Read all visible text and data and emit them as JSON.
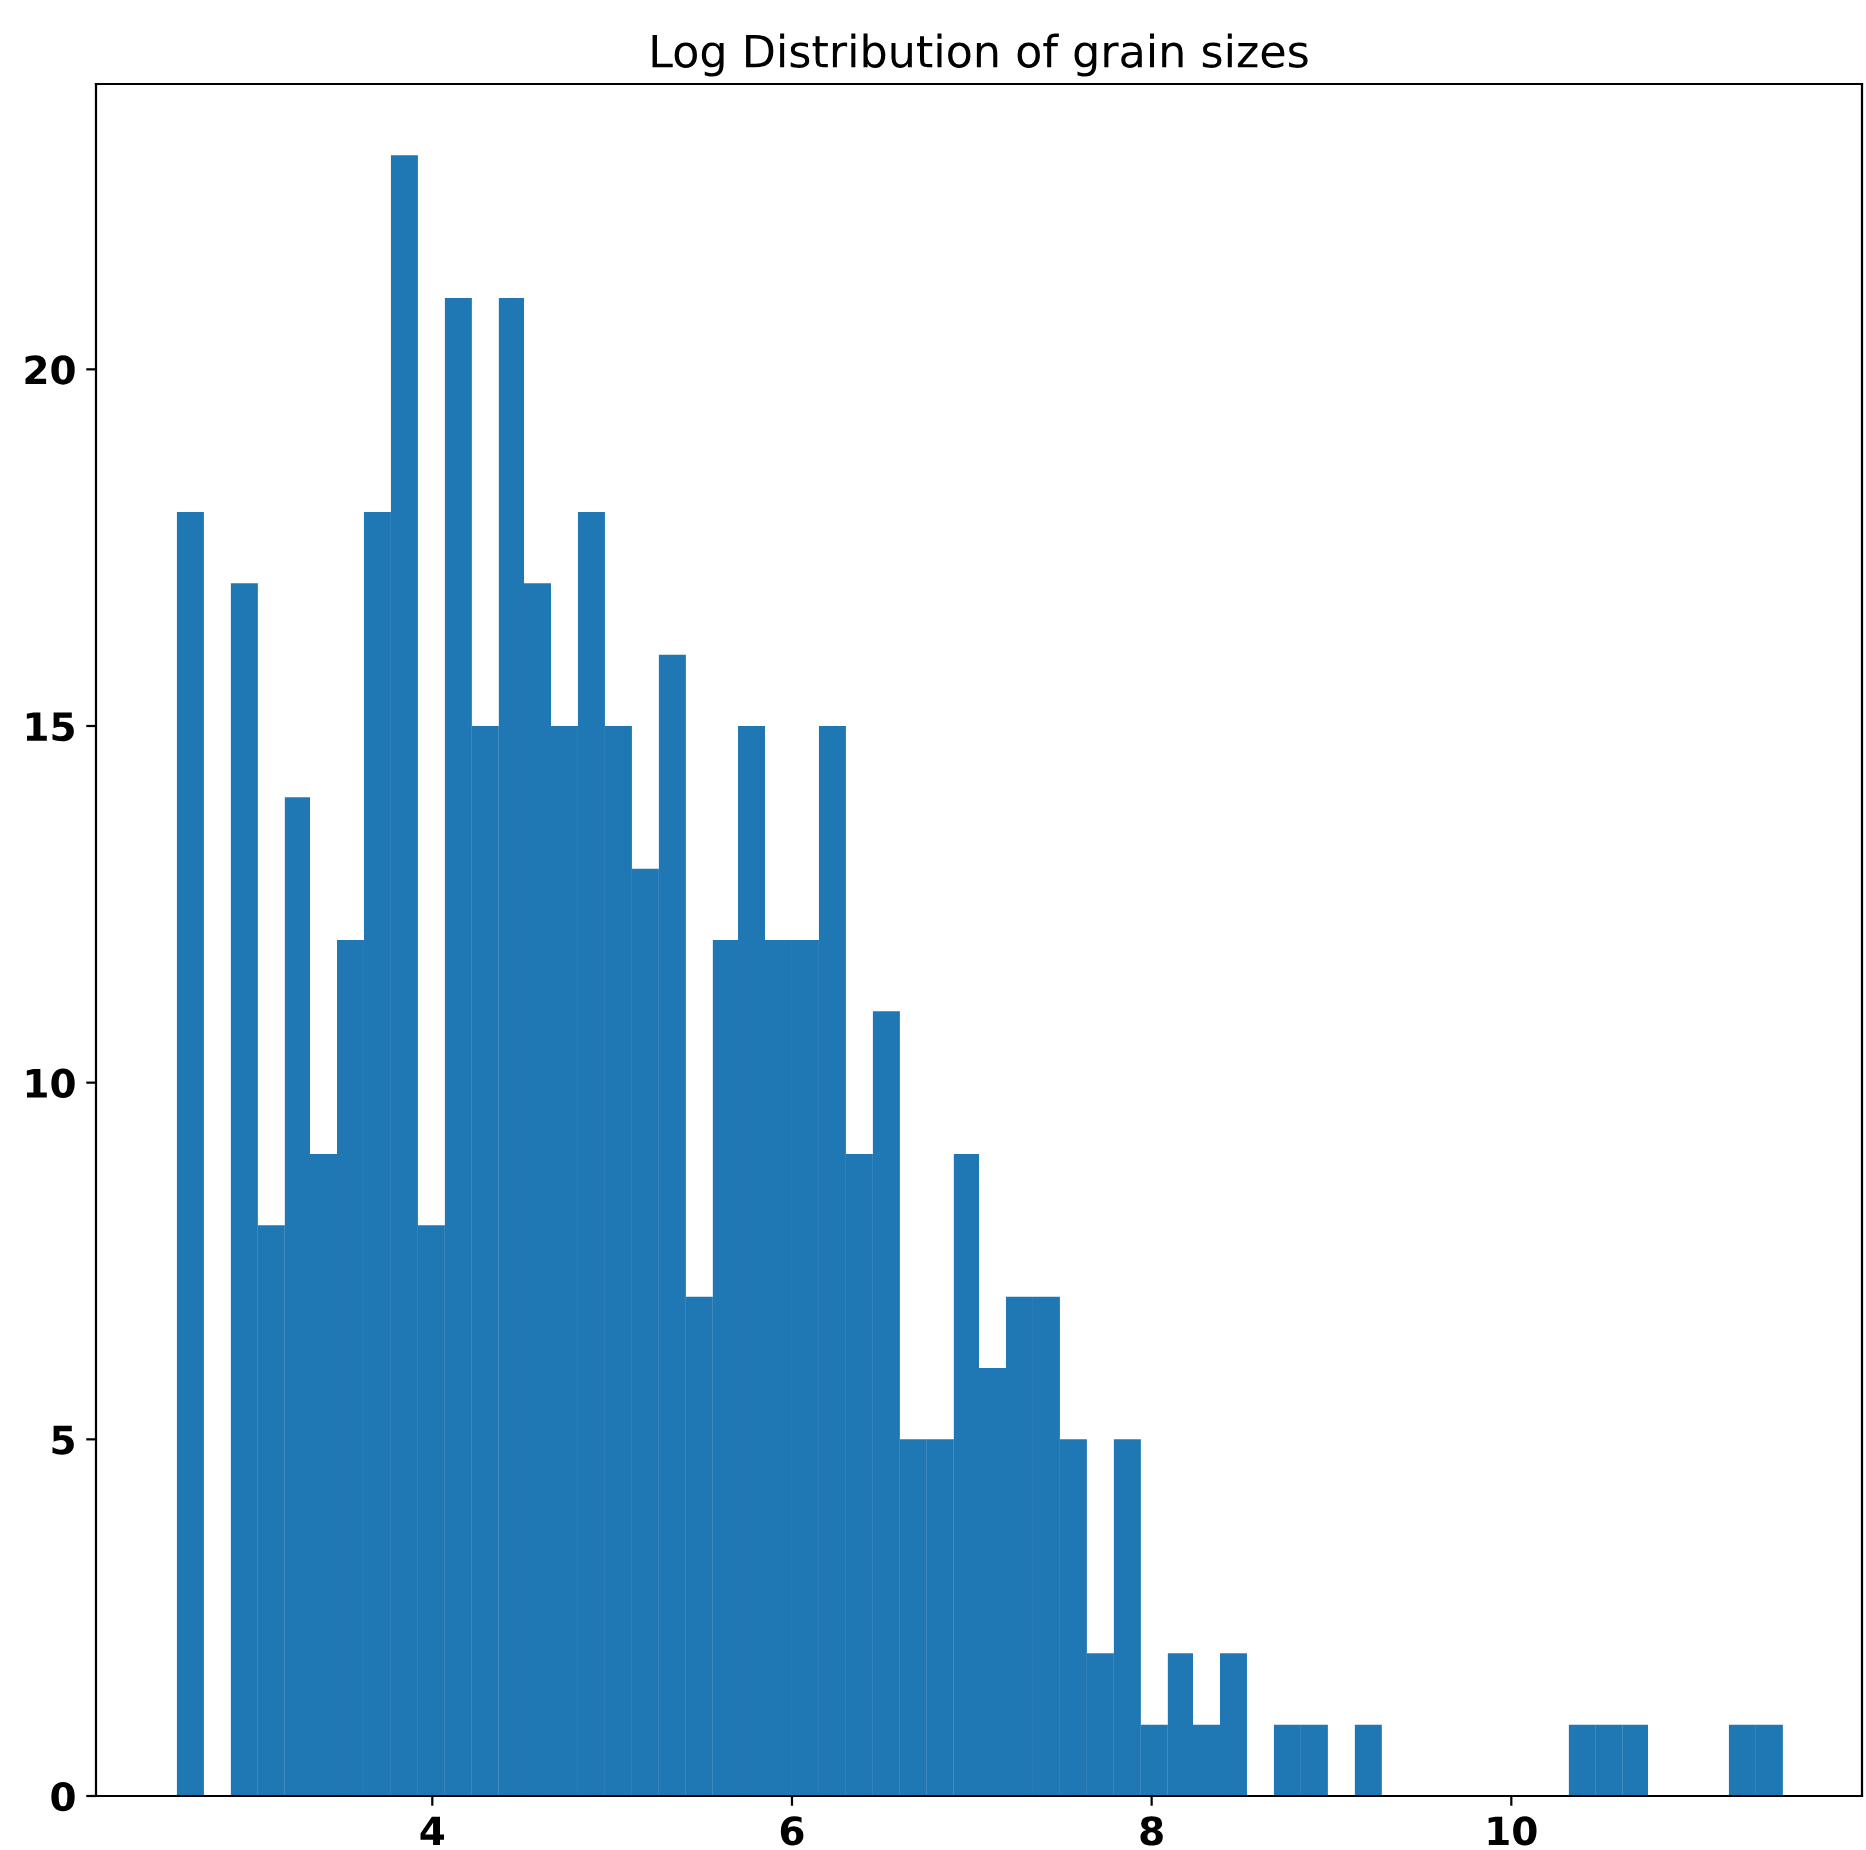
{
  "chart_data": {
    "type": "histogram",
    "title": "Log Distribution of grain sizes",
    "bins": [
      2.58,
      2.73,
      2.88,
      3.03,
      3.18,
      3.32,
      3.47,
      3.62,
      3.77,
      3.92,
      4.07,
      4.22,
      4.37,
      4.51,
      4.66,
      4.81,
      4.96,
      5.11,
      5.26,
      5.41,
      5.56,
      5.7,
      5.85,
      6.0,
      6.15,
      6.3,
      6.45,
      6.6,
      6.75,
      6.9,
      7.04,
      7.19,
      7.34,
      7.49,
      7.64,
      7.79,
      7.94,
      8.09,
      8.23,
      8.38,
      8.53,
      8.68,
      8.83,
      8.98,
      9.13,
      9.28,
      10.32,
      10.47,
      10.62,
      10.76,
      11.21,
      11.36,
      11.51
    ],
    "values": [
      18,
      0,
      17,
      8,
      14,
      9,
      12,
      18,
      23,
      8,
      21,
      15,
      21,
      17,
      15,
      18,
      15,
      13,
      16,
      7,
      12,
      15,
      12,
      12,
      15,
      9,
      11,
      5,
      5,
      9,
      6,
      7,
      7,
      5,
      2,
      5,
      1,
      2,
      1,
      2,
      0,
      1,
      1,
      0,
      1,
      0,
      1,
      1,
      1,
      0,
      1,
      1
    ],
    "color": "#1f77b4",
    "xlim": [
      2.13,
      11.95
    ],
    "ylim": [
      0,
      24
    ],
    "xticks": [
      4,
      6,
      8,
      10
    ],
    "yticks": [
      0,
      5,
      10,
      15,
      20
    ],
    "grid": false
  }
}
